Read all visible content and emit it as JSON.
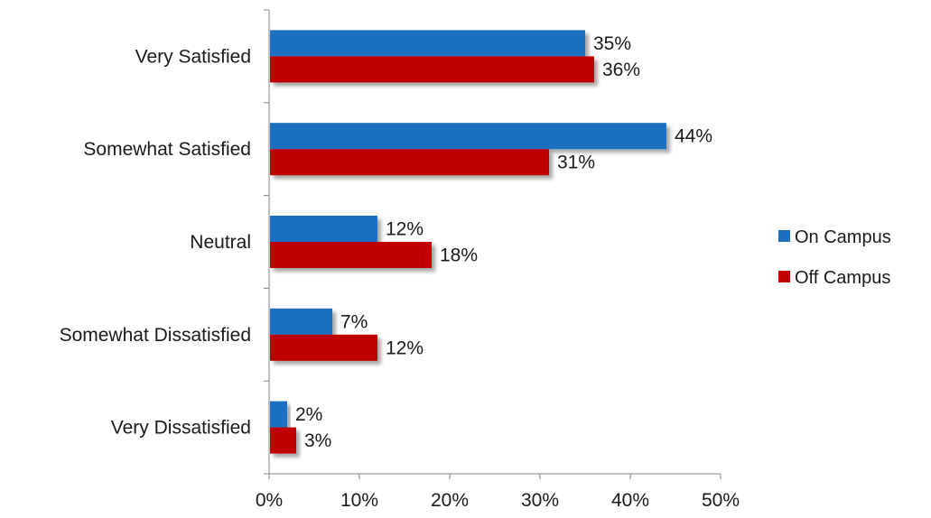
{
  "chart_data": {
    "type": "bar",
    "orientation": "horizontal",
    "categories": [
      "Very Satisfied",
      "Somewhat Satisfied",
      "Neutral",
      "Somewhat Dissatisfied",
      "Very Dissatisfied"
    ],
    "series": [
      {
        "name": "On Campus",
        "color": "#1f6fc1",
        "values": [
          35,
          44,
          12,
          7,
          2
        ],
        "labels": [
          "35%",
          "44%",
          "12%",
          "7%",
          "2%"
        ]
      },
      {
        "name": "Off Campus",
        "color": "#c00000",
        "values": [
          36,
          31,
          18,
          12,
          3
        ],
        "labels": [
          "36%",
          "31%",
          "18%",
          "12%",
          "3%"
        ]
      }
    ],
    "title": "",
    "xlabel": "",
    "ylabel": "",
    "xlim": [
      0,
      50
    ],
    "xticks": [
      "0%",
      "10%",
      "20%",
      "30%",
      "40%",
      "50%"
    ],
    "grid": false,
    "legend_position": "right",
    "bar_shadow": true
  }
}
